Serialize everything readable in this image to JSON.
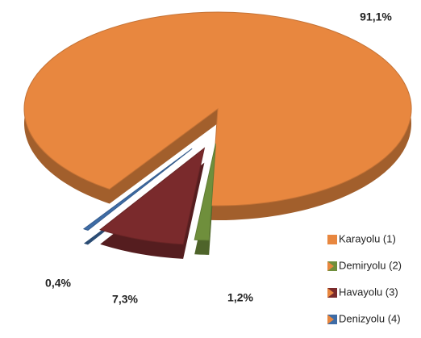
{
  "chart_data": {
    "type": "pie",
    "categories": [
      "Karayolu (1)",
      "Demiryolu (2)",
      "Havayolu (3)",
      "Denizyolu (4)"
    ],
    "values": [
      91.1,
      1.2,
      7.3,
      0.4
    ],
    "value_labels": [
      "91,1%",
      "1,2%",
      "7,3%",
      "0,4%"
    ],
    "colors": [
      "#e8873f",
      "#6f8f3c",
      "#7a2a2c",
      "#3e6ca6"
    ],
    "legend": "right"
  }
}
